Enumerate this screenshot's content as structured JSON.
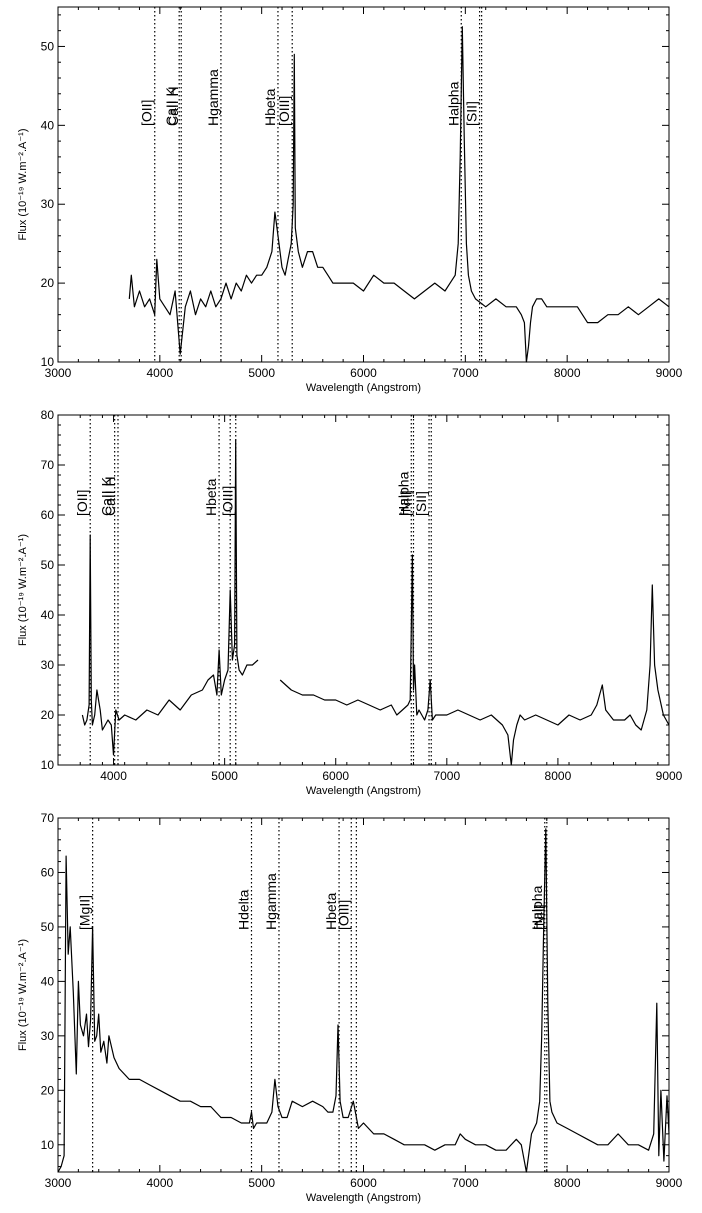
{
  "chart_data": [
    {
      "type": "line",
      "xlabel": "Wavelength (Angstrom)",
      "ylabel": "Flux (10⁻¹⁹ W.m⁻².A⁻¹)",
      "xlim": [
        3000,
        9000
      ],
      "ylim": [
        10,
        55
      ],
      "xticks": [
        3000,
        4000,
        5000,
        6000,
        7000,
        8000,
        9000
      ],
      "yticks": [
        10,
        20,
        30,
        40,
        50
      ],
      "grid": false,
      "spectrum_segments": [
        {
          "x": [
            3700,
            3720,
            3750,
            3800,
            3850,
            3900,
            3950,
            3970,
            4000,
            4050,
            4100,
            4150,
            4200,
            4250,
            4300,
            4350,
            4400,
            4450,
            4500,
            4550,
            4600,
            4650,
            4700,
            4750,
            4800,
            4850,
            4900,
            4950,
            5000,
            5050,
            5100,
            5130,
            5160,
            5180,
            5200,
            5230,
            5260,
            5290,
            5310,
            5320,
            5330,
            5360,
            5400,
            5450,
            5500,
            5550,
            5600,
            5650,
            5700,
            5800,
            5900,
            6000,
            6100,
            6200,
            6300,
            6400,
            6500,
            6600,
            6700,
            6800,
            6850,
            6900,
            6930,
            6950,
            6970,
            6990,
            7010,
            7030,
            7060,
            7100,
            7200,
            7300,
            7400,
            7500,
            7550,
            7580,
            7600,
            7620,
            7640,
            7660,
            7700,
            7750,
            7800,
            7900,
            8000,
            8100,
            8200,
            8300,
            8400,
            8500,
            8600,
            8700,
            8800,
            8900,
            9000
          ],
          "y": [
            18,
            21,
            17,
            19,
            17,
            18,
            16,
            23,
            18,
            17,
            16,
            19,
            11,
            17,
            19,
            16,
            18,
            17,
            19,
            17,
            18,
            20,
            18,
            20,
            19,
            21,
            20,
            21,
            21,
            22,
            24,
            29,
            26,
            24,
            22,
            21,
            23,
            25,
            30,
            49,
            27,
            24,
            22,
            24,
            24,
            22,
            22,
            21,
            20,
            20,
            20,
            19,
            21,
            20,
            20,
            19,
            18,
            19,
            20,
            19,
            20,
            21,
            25,
            36,
            52.5,
            38,
            25,
            21,
            19,
            18,
            17,
            18,
            17,
            17,
            16,
            15,
            10,
            12,
            15,
            17,
            18,
            18,
            17,
            17,
            17,
            17,
            15,
            15,
            16,
            16,
            17,
            16,
            17,
            18,
            17
          ]
        }
      ],
      "lines": [
        {
          "label": "[OII]",
          "x": 3950
        },
        {
          "label": "CaII K",
          "x": 4190
        },
        {
          "label": "CaII H",
          "x": 4210
        },
        {
          "label": "Hgamma",
          "x": 4600
        },
        {
          "label": "Hbeta",
          "x": 5160
        },
        {
          "label": "[OIII]",
          "x": 5300
        },
        {
          "label": "Halpha",
          "x": 6960
        },
        {
          "label": "[SII]",
          "x": 7140
        },
        {
          "label": "",
          "x": 7160
        }
      ]
    },
    {
      "type": "line",
      "xlabel": "Wavelength (Angstrom)",
      "ylabel": "Flux (10⁻¹⁹ W.m⁻².A⁻¹)",
      "xlim": [
        3500,
        9000
      ],
      "ylim": [
        10,
        80
      ],
      "xticks": [
        4000,
        5000,
        6000,
        7000,
        8000,
        9000
      ],
      "yticks": [
        10,
        20,
        30,
        40,
        50,
        60,
        70,
        80
      ],
      "grid": false,
      "spectrum_segments": [
        {
          "x": [
            3720,
            3740,
            3760,
            3780,
            3790,
            3800,
            3810,
            3830,
            3850,
            3880,
            3900,
            3950,
            3980,
            4000,
            4020,
            4050,
            4100,
            4200,
            4300,
            4400,
            4500,
            4600,
            4700,
            4800,
            4850,
            4900,
            4930,
            4950,
            4970,
            5000,
            5030,
            5050,
            5070,
            5090,
            5100,
            5110,
            5130,
            5160,
            5200,
            5250,
            5300
          ],
          "y": [
            20,
            18,
            19,
            22,
            56,
            23,
            18,
            20,
            25,
            21,
            17,
            19,
            18,
            12,
            21,
            19,
            20,
            19,
            21,
            20,
            23,
            21,
            24,
            25,
            27,
            28,
            24,
            33,
            24,
            27,
            29,
            45,
            31,
            34,
            75,
            32,
            29,
            28,
            30,
            30,
            31
          ]
        },
        {
          "x": [
            5500,
            5550,
            5600,
            5700,
            5800,
            5900,
            6000,
            6100,
            6200,
            6300,
            6400,
            6500,
            6550,
            6600,
            6650,
            6670,
            6690,
            6700,
            6710,
            6730,
            6750,
            6800,
            6830,
            6850,
            6870,
            6900,
            7000,
            7100,
            7200,
            7300,
            7400,
            7500,
            7550,
            7580,
            7600,
            7630,
            7660,
            7700,
            7800,
            7900,
            8000,
            8100,
            8200,
            8300,
            8350,
            8400,
            8430,
            8500,
            8600,
            8650,
            8700,
            8750,
            8800,
            8830,
            8850,
            8870,
            8900,
            8950,
            9000
          ],
          "y": [
            27,
            26,
            25,
            24,
            24,
            23,
            23,
            22,
            23,
            22,
            21,
            22,
            20,
            21,
            22,
            23,
            52,
            25,
            30,
            20,
            21,
            19,
            21,
            27,
            19,
            20,
            20,
            21,
            20,
            19,
            20,
            18,
            16,
            10,
            15,
            18,
            20,
            19,
            20,
            19,
            18,
            20,
            19,
            20,
            22,
            26,
            21,
            19,
            19,
            20,
            18,
            17,
            21,
            30,
            46,
            30,
            25,
            20,
            18
          ]
        }
      ],
      "lines": [
        {
          "label": "[OII]",
          "x": 3790
        },
        {
          "label": "CaII K",
          "x": 4010
        },
        {
          "label": "CaII H",
          "x": 4040
        },
        {
          "label": "Hbeta",
          "x": 4950
        },
        {
          "label": "",
          "x": 5050
        },
        {
          "label": "[OIII]",
          "x": 5100
        },
        {
          "label": "Halpha",
          "x": 6680
        },
        {
          "label": "[NII]",
          "x": 6700
        },
        {
          "label": "[SII]",
          "x": 6840
        },
        {
          "label": "",
          "x": 6860
        }
      ]
    },
    {
      "type": "line",
      "xlabel": "Wavelength (Angstrom)",
      "ylabel": "Flux (10⁻¹⁹ W.m⁻².A⁻¹)",
      "xlim": [
        3000,
        9000
      ],
      "ylim": [
        5,
        70
      ],
      "xticks": [
        3000,
        4000,
        5000,
        6000,
        7000,
        8000,
        9000
      ],
      "yticks": [
        10,
        20,
        30,
        40,
        50,
        60,
        70
      ],
      "grid": false,
      "spectrum_segments": [
        {
          "x": [
            3000,
            3030,
            3060,
            3080,
            3100,
            3120,
            3150,
            3180,
            3200,
            3220,
            3250,
            3280,
            3300,
            3320,
            3340,
            3360,
            3380,
            3400,
            3420,
            3450,
            3480,
            3500,
            3550,
            3600,
            3700,
            3800,
            3900,
            4000,
            4100,
            4200,
            4300,
            4400,
            4500,
            4600,
            4700,
            4800,
            4850,
            4880,
            4900,
            4920,
            4950,
            5000,
            5050,
            5100,
            5130,
            5160,
            5180,
            5200,
            5250,
            5300,
            5400,
            5500,
            5600,
            5650,
            5700,
            5730,
            5750,
            5770,
            5800,
            5850,
            5900,
            5930,
            5950,
            6000,
            6100,
            6200,
            6300,
            6400,
            6500,
            6600,
            6700,
            6800,
            6900,
            6950,
            7000,
            7100,
            7200,
            7300,
            7400,
            7500,
            7550,
            7600,
            7650,
            7700,
            7730,
            7750,
            7770,
            7790,
            7810,
            7830,
            7850,
            7900,
            8000,
            8100,
            8200,
            8300,
            8400,
            8500,
            8600,
            8700,
            8800,
            8850,
            8880,
            8900,
            8920,
            8950,
            8980,
            9000
          ],
          "y": [
            5,
            6,
            8,
            63,
            45,
            50,
            38,
            23,
            40,
            32,
            30,
            34,
            28,
            33,
            50,
            29,
            30,
            34,
            27,
            29,
            25,
            30,
            26,
            24,
            22,
            22,
            21,
            20,
            19,
            18,
            18,
            17,
            17,
            15,
            15,
            14,
            14,
            14,
            16,
            13,
            14,
            14,
            14,
            16,
            22,
            17,
            16,
            15,
            15,
            18,
            17,
            18,
            17,
            16,
            16,
            19,
            32,
            18,
            15,
            15,
            18,
            15,
            13,
            14,
            12,
            12,
            11,
            10,
            10,
            10,
            9,
            10,
            10,
            12,
            11,
            10,
            10,
            9,
            9,
            11,
            10,
            5,
            12,
            14,
            18,
            30,
            50,
            68,
            36,
            18,
            16,
            14,
            13,
            12,
            11,
            10,
            10,
            12,
            10,
            10,
            9,
            12,
            36,
            8,
            20,
            7,
            19,
            12
          ]
        }
      ],
      "lines": [
        {
          "label": "[MgII]",
          "x": 3340
        },
        {
          "label": "Hdelta",
          "x": 4900
        },
        {
          "label": "Hgamma",
          "x": 5170
        },
        {
          "label": "Hbeta",
          "x": 5760
        },
        {
          "label": "[OIII]",
          "x": 5880
        },
        {
          "label": "",
          "x": 5930
        },
        {
          "label": "Halpha",
          "x": 7780
        },
        {
          "label": "[NII]",
          "x": 7800
        }
      ]
    }
  ]
}
